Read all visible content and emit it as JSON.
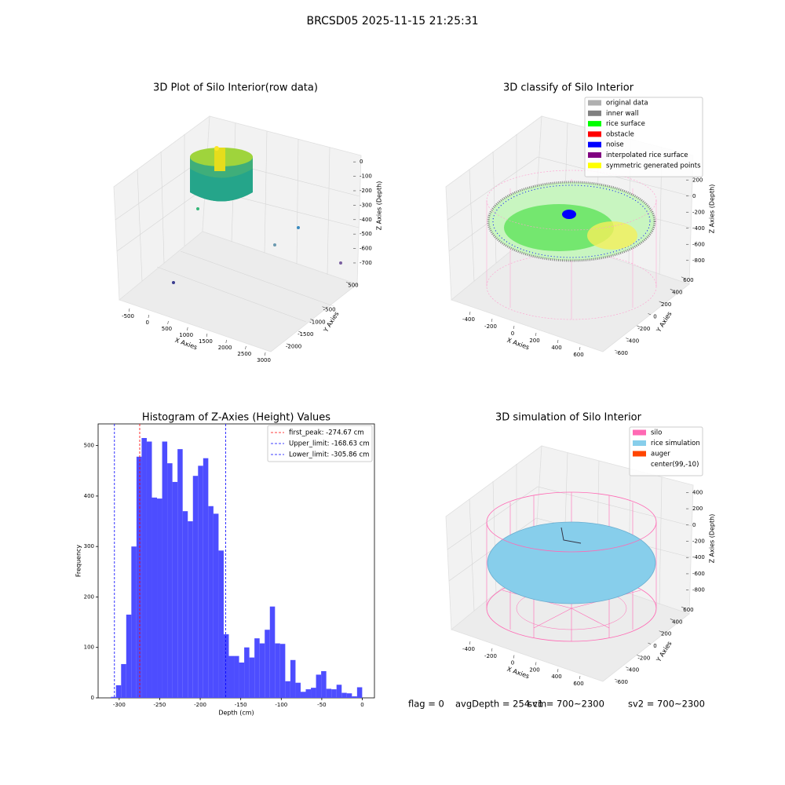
{
  "title": "BRCSD05 2025-11-15 21:25:31",
  "chart_data": [
    {
      "type": "scatter3d",
      "title": "3D Plot of Silo Interior(row data)",
      "xlabel": "X Axies",
      "ylabel": "Y Axies",
      "zlabel": "Z Axies (Depth)",
      "xlim": [
        -650,
        3100
      ],
      "xticks": [
        -500,
        0,
        500,
        1000,
        1500,
        2000,
        2500,
        3000
      ],
      "ylim": [
        -2200,
        700
      ],
      "yticks": [
        500,
        -500,
        -1000,
        -1500,
        -2000
      ],
      "zlim": [
        -760,
        50
      ],
      "zticks": [
        0,
        -100,
        -200,
        -300,
        -400,
        -500,
        -600,
        -700
      ]
    },
    {
      "type": "scatter3d",
      "title": "3D classify of Silo Interior",
      "xlabel": "X Axies",
      "ylabel": "Y Axies",
      "zlabel": "Z Axies (Depth)",
      "xlim": [
        -500,
        700
      ],
      "xticks": [
        -400,
        -200,
        0,
        200,
        400,
        600
      ],
      "ylim": [
        -700,
        700
      ],
      "yticks": [
        600,
        400,
        200,
        0,
        -200,
        -400,
        -600
      ],
      "zlim": [
        -900,
        300
      ],
      "zticks": [
        200,
        0,
        -200,
        -400,
        -600,
        -800
      ],
      "legend": [
        {
          "label": "original data",
          "color": "#b0b0b0"
        },
        {
          "label": "inner wall",
          "color": "#808080"
        },
        {
          "label": "rice surface",
          "color": "#00ff00"
        },
        {
          "label": "obstacle",
          "color": "#ff0000"
        },
        {
          "label": "noise",
          "color": "#0000ff"
        },
        {
          "label": "interpolated rice surface",
          "color": "#800080"
        },
        {
          "label": "symmetric generated points",
          "color": "#ffff00"
        }
      ]
    },
    {
      "type": "histogram",
      "title": "Histogram of Z-Axies (Height) Values",
      "xlabel": "Depth (cm)",
      "ylabel": "Frequency",
      "color": "#4d4dff",
      "bins": [
        -310.3,
        -303.97,
        -297.64,
        -291.31,
        -284.98,
        -278.65,
        -272.32,
        -265.99,
        -259.66,
        -253.33,
        -247.0,
        -240.67,
        -234.34,
        -228.01,
        -221.68,
        -215.35,
        -209.02,
        -202.69,
        -196.36,
        -190.03,
        -183.7,
        -177.37,
        -171.04,
        -164.71,
        -158.38,
        -152.05,
        -145.72,
        -139.39,
        -133.06,
        -126.73,
        -120.4,
        -114.07,
        -107.74,
        -101.41,
        -95.08,
        -88.75,
        -82.42,
        -76.09,
        -69.76,
        -63.43,
        -57.1,
        -50.77,
        -44.44,
        -38.11,
        -31.78,
        -25.45,
        -19.12,
        -12.79,
        -6.46,
        -0.13
      ],
      "counts": [
        2,
        25,
        67,
        165,
        300,
        478,
        515,
        508,
        397,
        395,
        508,
        465,
        428,
        493,
        370,
        350,
        440,
        460,
        475,
        380,
        365,
        292,
        126,
        83,
        83,
        70,
        100,
        80,
        118,
        108,
        135,
        181,
        108,
        107,
        33,
        75,
        30,
        12,
        17,
        20,
        46,
        53,
        18,
        17,
        26,
        10,
        9,
        3,
        21
      ],
      "xlim": [
        -326,
        15
      ],
      "xticks": [
        -300,
        -250,
        -200,
        -150,
        -100,
        -50,
        0
      ],
      "ylim": [
        0,
        543
      ],
      "yticks": [
        0,
        100,
        200,
        300,
        400,
        500
      ],
      "vlines": [
        {
          "label": "first_peak: -274.67 cm",
          "value": -274.67,
          "color": "#ff0000"
        },
        {
          "label": "Upper_limit: -168.63 cm",
          "value": -168.63,
          "color": "#0000ff"
        },
        {
          "label": "Lower_limit: -305.86 cm",
          "value": -305.86,
          "color": "#0000ff"
        }
      ],
      "legend_position": "upper right"
    },
    {
      "type": "scatter3d",
      "title": "3D simulation of Silo Interior",
      "xlabel": "X Axies",
      "ylabel": "Y Axies",
      "zlabel": "Z Axies (Depth)",
      "xlim": [
        -500,
        700
      ],
      "xticks": [
        -400,
        -200,
        0,
        200,
        400,
        600
      ],
      "ylim": [
        -700,
        700
      ],
      "yticks": [
        600,
        400,
        200,
        0,
        -200,
        -400,
        -600
      ],
      "zlim": [
        -900,
        500
      ],
      "zticks": [
        400,
        200,
        0,
        -200,
        -400,
        -600,
        -800
      ],
      "legend": [
        {
          "label": "silo",
          "color": "#ff69b4"
        },
        {
          "label": "rice simulation",
          "color": "#87ceeb"
        },
        {
          "label": "auger",
          "color": "#ff4500"
        },
        {
          "label": "center(99,-10)"
        }
      ]
    }
  ],
  "status": [
    "flag = 0",
    "avgDepth = 254 cm",
    "sv1 = 700~2300",
    "sv2 = 700~2300"
  ]
}
